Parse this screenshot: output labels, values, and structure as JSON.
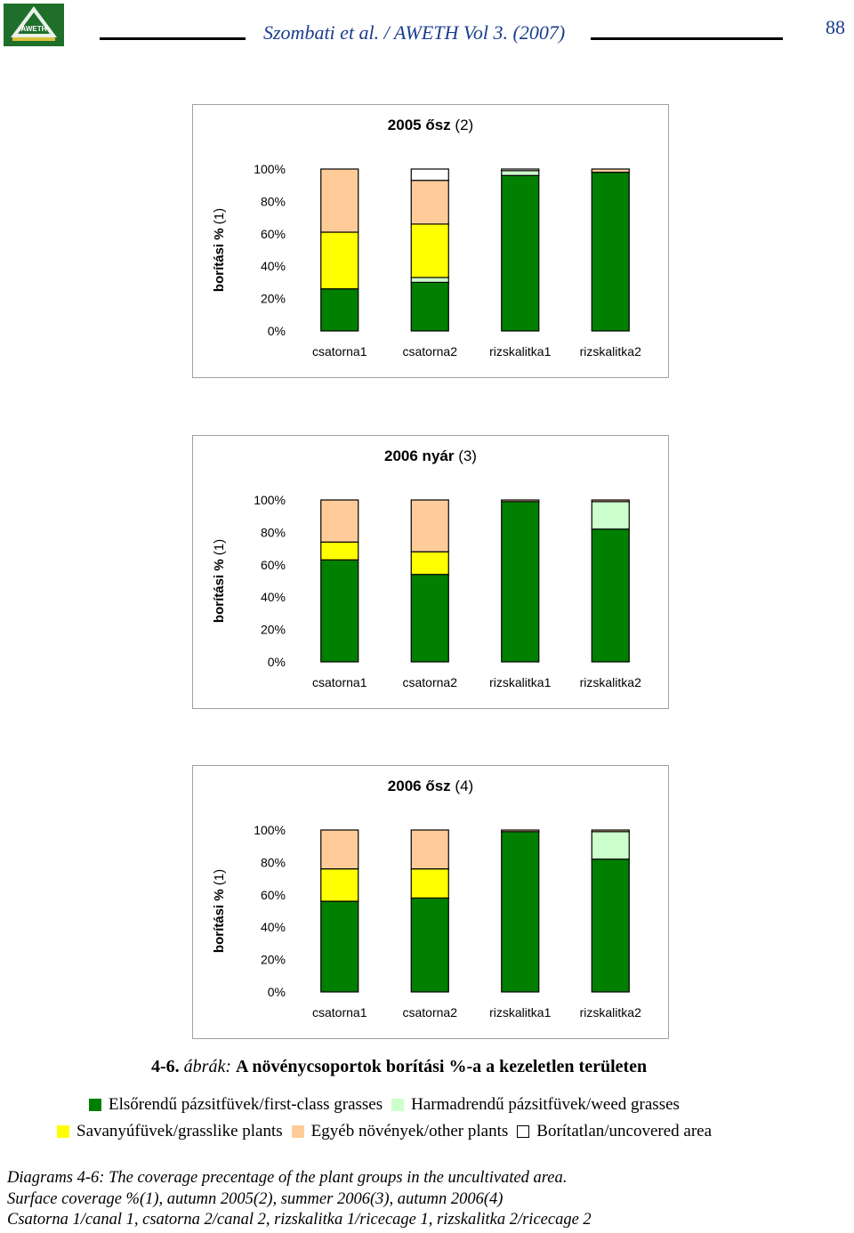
{
  "header": {
    "journal": "Szombati et al. / AWETH Vol 3. (2007)",
    "page_number": "88",
    "logo_text": "AWETH"
  },
  "colors": {
    "first_class": "#007f00",
    "weed": "#ccffcc",
    "grasslike": "#ffff00",
    "other": "#ffcc99",
    "uncovered": "#ffffff",
    "journal_text": "#1a3d8f"
  },
  "chart_data": [
    {
      "type": "bar",
      "stacked": true,
      "title": "2005 ősz (2)",
      "title_parts": [
        "2005 ősz",
        " (2)"
      ],
      "ylabel": "borítási % (1)",
      "ylim": [
        0,
        100
      ],
      "yticks": [
        "0%",
        "20%",
        "40%",
        "60%",
        "80%",
        "100%"
      ],
      "categories": [
        "csatorna1",
        "csatorna2",
        "rizskalitka1",
        "rizskalitka2"
      ],
      "series": [
        {
          "name": "Elsőrendű pázsitfüvek/first-class grasses",
          "values": [
            26,
            30,
            96,
            98
          ]
        },
        {
          "name": "Harmadrendű pázsitfüvek/weed grasses",
          "values": [
            0,
            3,
            3,
            0
          ]
        },
        {
          "name": "Savanyúfüvek/grasslike plants",
          "values": [
            35,
            33,
            0,
            0
          ]
        },
        {
          "name": "Egyéb növények/other plants",
          "values": [
            39,
            27,
            0,
            2
          ]
        },
        {
          "name": "Borítatlan/uncovered area",
          "values": [
            0,
            7,
            1,
            0
          ]
        }
      ]
    },
    {
      "type": "bar",
      "stacked": true,
      "title": "2006 nyár (3)",
      "title_parts": [
        "2006 nyár",
        " (3)"
      ],
      "ylabel": "borítási % (1)",
      "ylim": [
        0,
        100
      ],
      "yticks": [
        "0%",
        "20%",
        "40%",
        "60%",
        "80%",
        "100%"
      ],
      "categories": [
        "csatorna1",
        "csatorna2",
        "rizskalitka1",
        "rizskalitka2"
      ],
      "series": [
        {
          "name": "Elsőrendű pázsitfüvek/first-class grasses",
          "values": [
            63,
            54,
            99,
            82
          ]
        },
        {
          "name": "Harmadrendű pázsitfüvek/weed grasses",
          "values": [
            0,
            0,
            0,
            17
          ]
        },
        {
          "name": "Savanyúfüvek/grasslike plants",
          "values": [
            11,
            14,
            0,
            0
          ]
        },
        {
          "name": "Egyéb növények/other plants",
          "values": [
            26,
            32,
            1,
            1
          ]
        },
        {
          "name": "Borítatlan/uncovered area",
          "values": [
            0,
            0,
            0,
            0
          ]
        }
      ]
    },
    {
      "type": "bar",
      "stacked": true,
      "title": "2006 ősz (4)",
      "title_parts": [
        "2006 ősz",
        " (4)"
      ],
      "ylabel": "borítási % (1)",
      "ylim": [
        0,
        100
      ],
      "yticks": [
        "0%",
        "20%",
        "40%",
        "60%",
        "80%",
        "100%"
      ],
      "categories": [
        "csatorna1",
        "csatorna2",
        "rizskalitka1",
        "rizskalitka2"
      ],
      "series": [
        {
          "name": "Elsőrendű pázsitfüvek/first-class grasses",
          "values": [
            56,
            58,
            99,
            82
          ]
        },
        {
          "name": "Harmadrendű pázsitfüvek/weed grasses",
          "values": [
            0,
            0,
            0,
            17
          ]
        },
        {
          "name": "Savanyúfüvek/grasslike plants",
          "values": [
            20,
            18,
            0,
            0
          ]
        },
        {
          "name": "Egyéb növények/other plants",
          "values": [
            24,
            24,
            1,
            1
          ]
        },
        {
          "name": "Borítatlan/uncovered area",
          "values": [
            0,
            0,
            0,
            0
          ]
        }
      ]
    }
  ],
  "caption": {
    "number": "4-6.",
    "italic_word": "ábrák:",
    "text": "A növénycsoportok borítási %-a a kezeletlen területen"
  },
  "legend": {
    "row1": [
      {
        "key": "first_class",
        "label": "Elsőrendű pázsitfüvek/first-class grasses"
      },
      {
        "key": "weed",
        "label": "Harmadrendű pázsitfüvek/weed grasses"
      }
    ],
    "row2": [
      {
        "key": "grasslike",
        "label": "Savanyúfüvek/grasslike plants"
      },
      {
        "key": "other",
        "label": "Egyéb növények/other plants"
      },
      {
        "key": "uncovered",
        "label": "Borítatlan/uncovered area"
      }
    ]
  },
  "notes": [
    "Diagrams 4-6: The coverage precentage of the plant groups in the uncultivated area.",
    "Surface coverage %(1), autumn 2005(2), summer 2006(3), autumn 2006(4)",
    "Csatorna 1/canal 1, csatorna 2/canal 2, rizskalitka 1/ricecage 1, rizskalitka 2/ricecage 2"
  ]
}
